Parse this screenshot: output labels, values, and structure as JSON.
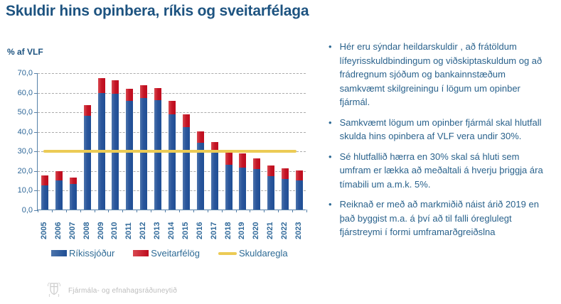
{
  "title": "Skuldir hins opinbera, ríkis og sveitarfélaga",
  "chart_data": {
    "type": "bar",
    "stacked": true,
    "title": "Skuldir hins opinbera, ríkis og sveitarfélaga",
    "ylabel": "% af VLF",
    "xlabel": "",
    "ylim": [
      0,
      70
    ],
    "ytick_interval": 10,
    "ytick_labels": [
      "0,0",
      "10,0",
      "20,0",
      "30,0",
      "40,0",
      "50,0",
      "60,0",
      "70,0"
    ],
    "grid": "horizontal-dashed",
    "legend_position": "bottom",
    "categories": [
      "2005",
      "2006",
      "2007",
      "2008",
      "2009",
      "2010",
      "2011",
      "2012",
      "2013",
      "2014",
      "2015",
      "2016",
      "2017",
      "2018",
      "2019",
      "2020",
      "2021",
      "2022",
      "2023"
    ],
    "series": [
      {
        "name": "Ríkissjóður",
        "color": "#1F4E94",
        "values": [
          12.5,
          15.0,
          13.0,
          48.0,
          59.5,
          59.0,
          55.5,
          57.0,
          56.0,
          48.5,
          42.0,
          34.0,
          29.0,
          23.0,
          21.5,
          20.5,
          17.0,
          15.5,
          15.0
        ]
      },
      {
        "name": "Sveitarfélög",
        "color": "#BE0B1E",
        "values": [
          5.0,
          4.5,
          3.5,
          5.5,
          7.5,
          7.0,
          6.0,
          6.5,
          6.0,
          7.0,
          6.5,
          6.0,
          5.5,
          7.5,
          7.0,
          5.5,
          5.5,
          5.5,
          5.0
        ]
      }
    ],
    "reference_line": {
      "name": "Skuldaregla",
      "value": 30,
      "color": "#ECCB55"
    }
  },
  "legend": {
    "items": [
      "Ríkissjóður",
      "Sveitarfélög",
      "Skuldaregla"
    ]
  },
  "bullets": {
    "items": [
      "Hér eru sýndar heildarskuldir , að frátöldum lífeyrisskuldbindingum og viðskiptaskuldum og að frádregnum sjóðum og bankainnstæðum samkvæmt skilgreiningu í lögum um opinber fjármál.",
      "Samkvæmt lögum um opinber fjármál skal hlutfall skulda hins opinbera af VLF vera undir 30%.",
      "Sé hlutfallið hærra en 30% skal sá hluti sem umfram er lækka að meðaltali á hverju þriggja ára tímabili um a.m.k. 5%.",
      "Reiknað er með að markmiðið náist árið 2019 en það byggist m.a. á því að til falli óreglulegt fjárstreymi í formi umframarðgreiðslna"
    ]
  },
  "footer": {
    "label": "Fjármála- og efnahagsráðuneytið"
  },
  "colors": {
    "title_blue": "#1D5380",
    "axis_text_blue": "#2F6899",
    "bullet_text_blue": "#2A628C",
    "bar_blue": "#1F4E94",
    "bar_red": "#BE0B1E",
    "rule_yellow": "#ECCB55",
    "gridline_gray": "#ABABAB",
    "axis_line_blue": "#5580A8",
    "footer_gray": "#BDBDBD"
  }
}
